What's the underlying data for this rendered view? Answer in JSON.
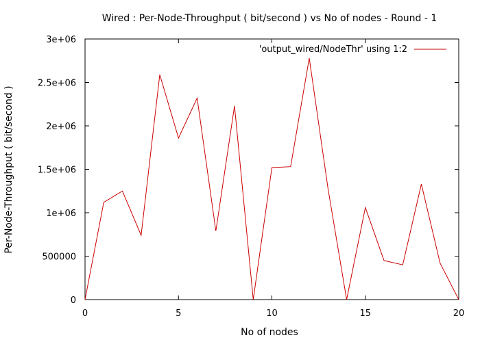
{
  "chart_data": {
    "type": "line",
    "title": "Wired : Per-Node-Throughput ( bit/second ) vs No of nodes - Round - 1",
    "xlabel": "No of nodes",
    "ylabel": "Per-Node-Throughput ( bit/second )",
    "xlim": [
      0,
      20
    ],
    "ylim": [
      0,
      3000000
    ],
    "xticks": [
      0,
      5,
      10,
      15,
      20
    ],
    "xtick_labels": [
      "0",
      "5",
      "10",
      "15",
      "20"
    ],
    "yticks": [
      0,
      500000,
      1000000,
      1500000,
      2000000,
      2500000,
      3000000
    ],
    "ytick_labels": [
      "0",
      "500000",
      "1e+06",
      "1.5e+06",
      "2e+06",
      "2.5e+06",
      "3e+06"
    ],
    "grid": false,
    "legend_position": "top-right",
    "series": [
      {
        "name": "'output_wired/NodeThr' using 1:2",
        "color": "#cc0000",
        "x": [
          0,
          1,
          2,
          3,
          4,
          5,
          6,
          7,
          8,
          9,
          10,
          11,
          12,
          13,
          14,
          15,
          16,
          17,
          18,
          19,
          20
        ],
        "y": [
          0,
          1120000,
          1250000,
          740000,
          2590000,
          1860000,
          2320000,
          790000,
          2230000,
          0,
          1520000,
          1530000,
          2780000,
          1280000,
          0,
          1060000,
          450000,
          400000,
          1330000,
          420000,
          0
        ]
      }
    ]
  }
}
